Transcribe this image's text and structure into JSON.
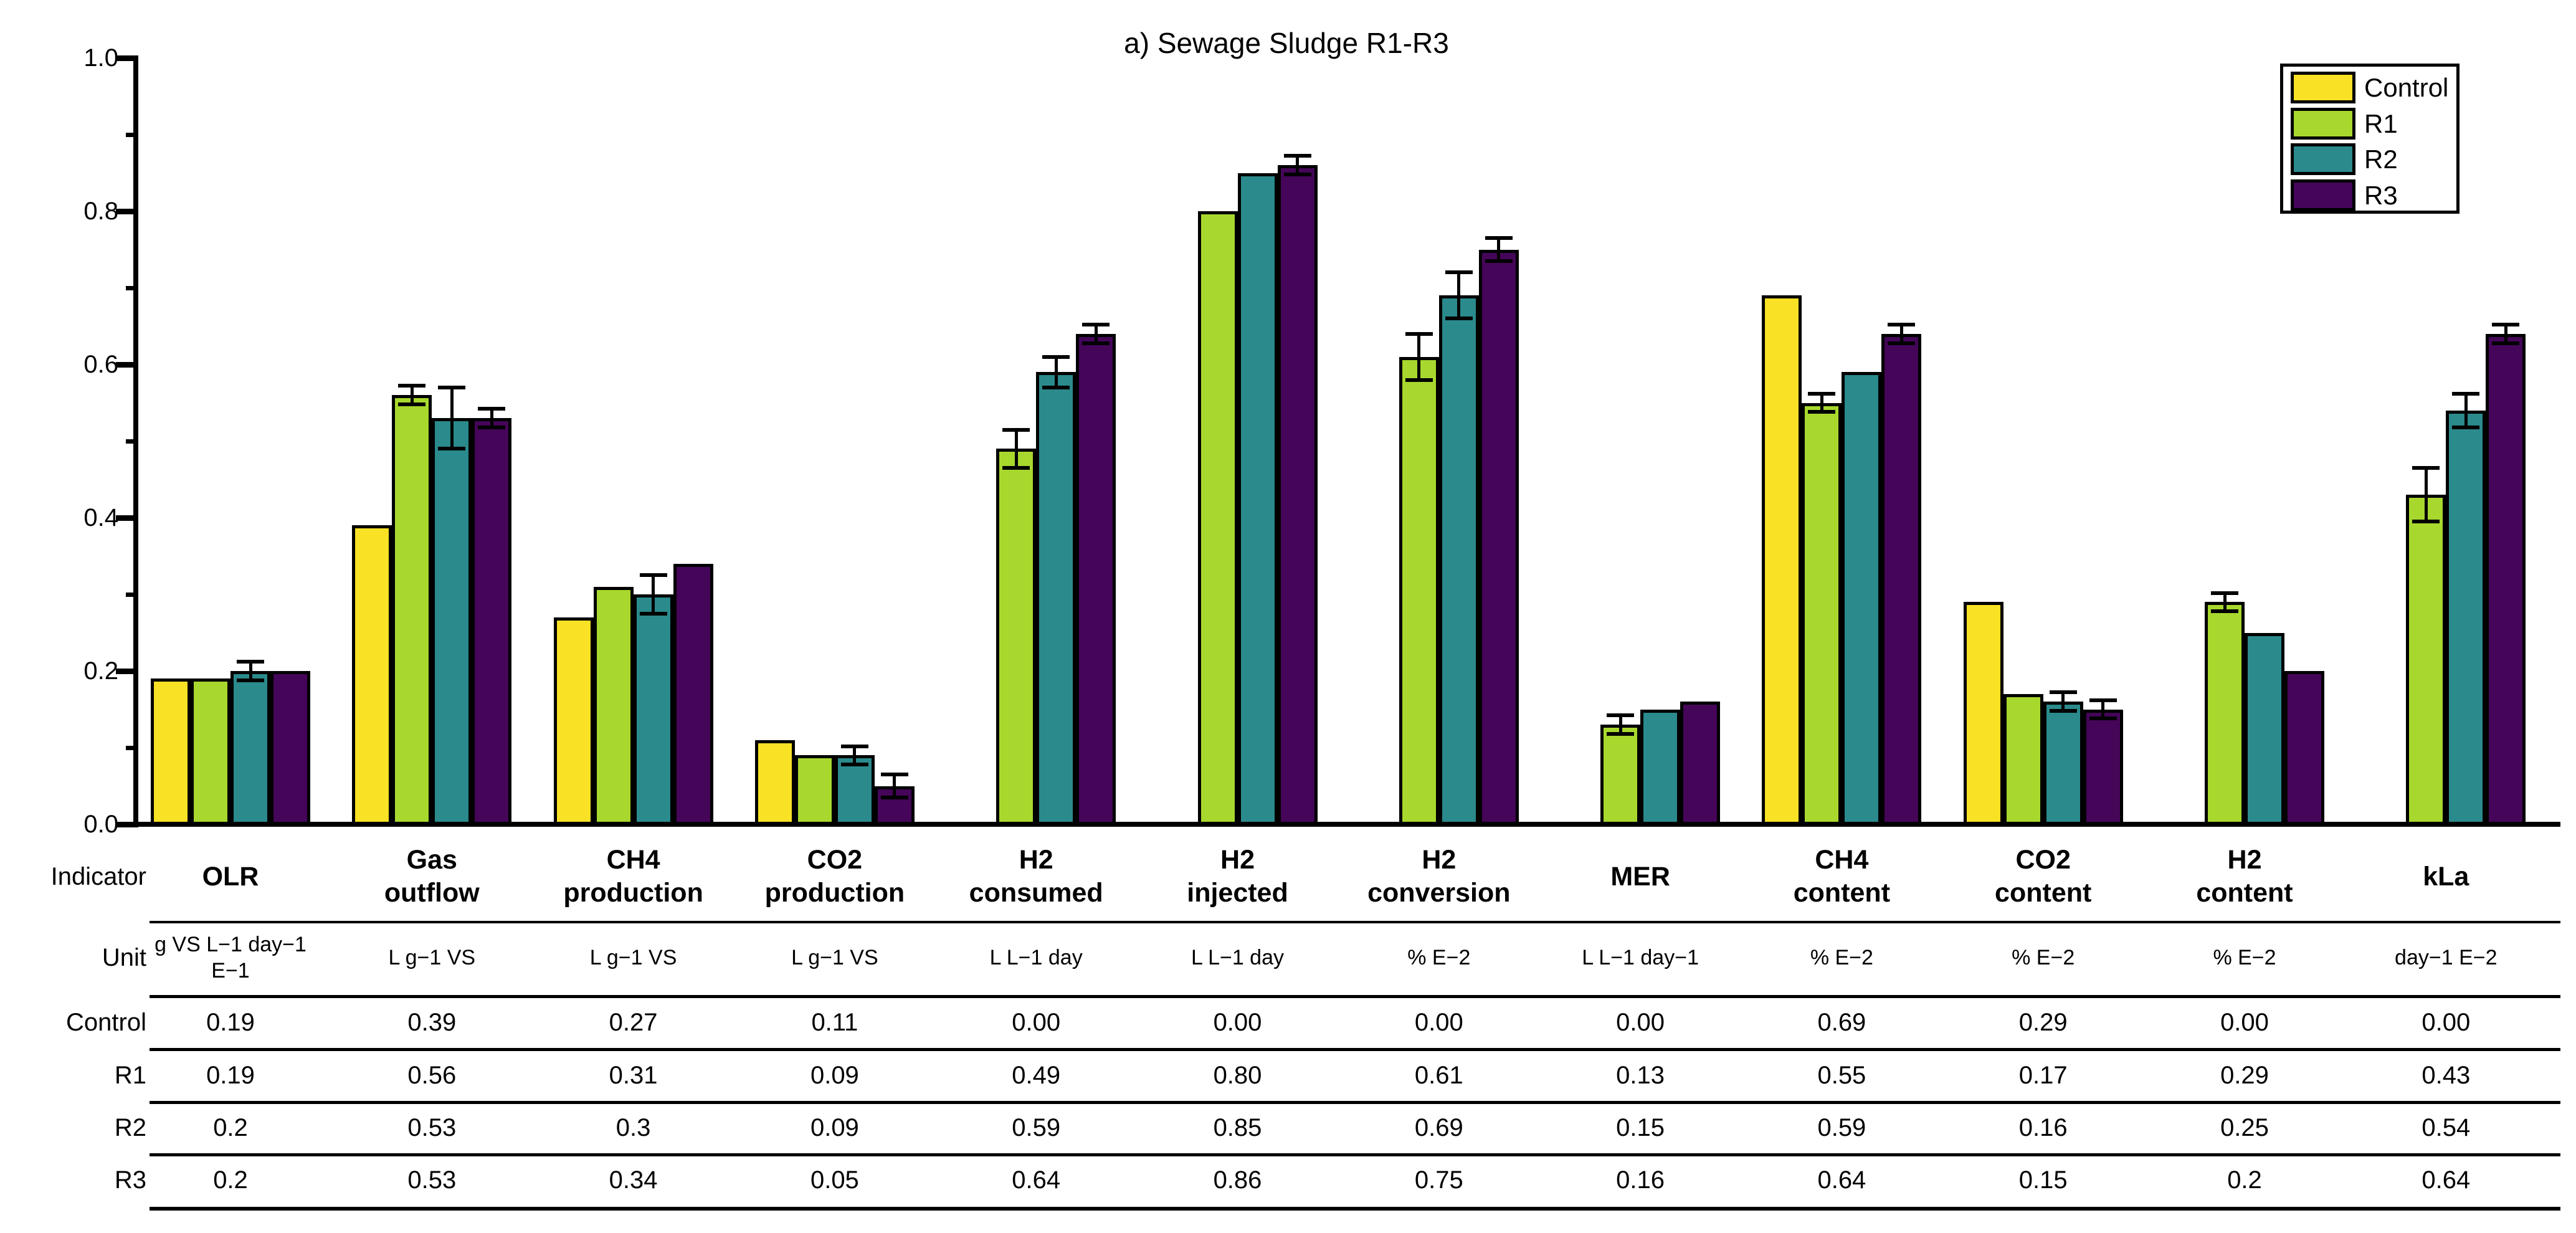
{
  "title": "a) Sewage Sludge R1-R3",
  "axis": {
    "indicator_label": "Indicator",
    "unit_label": "Unit"
  },
  "legend": {
    "position": "top-right",
    "entries": [
      {
        "label": "Control",
        "color": "#F9E125"
      },
      {
        "label": "R1",
        "color": "#A8D82E"
      },
      {
        "label": "R2",
        "color": "#2B8A8C"
      },
      {
        "label": "R3",
        "color": "#450559"
      }
    ]
  },
  "chart_data": {
    "type": "bar",
    "title": "a) Sewage Sludge R1-R3",
    "categories": [
      "OLR",
      "Gas\noutflow",
      "CH4\nproduction",
      "CO2\nproduction",
      "H2\nconsumed",
      "H2\ninjected",
      "H2\nconversion",
      "MER",
      "CH4\ncontent",
      "CO2\ncontent",
      "H2\ncontent",
      "kLa"
    ],
    "units": [
      "g VS L−1 day−1\nE−1",
      "L g−1 VS",
      "L g−1 VS",
      "L g−1 VS",
      "L L−1 day",
      "L L−1 day",
      "% E−2",
      "L L−1 day−1",
      "% E−2",
      "% E−2",
      "% E−2",
      "day−1 E−2"
    ],
    "xlabel": "Indicator",
    "ylabel": "",
    "ylim": [
      0,
      1
    ],
    "yticks": [
      0,
      0.2,
      0.4,
      0.6,
      0.8,
      1
    ],
    "minor_ticks": [
      0.1,
      0.3,
      0.5,
      0.7,
      0.9
    ],
    "grid": false,
    "legend_position": "top-right",
    "series": [
      {
        "name": "Control",
        "color": "#F9E125",
        "values": [
          0.19,
          0.39,
          0.27,
          0.11,
          0,
          0,
          0,
          0,
          0.69,
          0.29,
          0,
          0
        ],
        "errors": [
          0,
          0,
          0,
          0,
          0,
          0,
          0,
          0,
          0,
          0,
          0,
          0
        ]
      },
      {
        "name": "R1",
        "color": "#A8D82E",
        "values": [
          0.19,
          0.56,
          0.31,
          0.09,
          0.49,
          0.8,
          0.61,
          0.13,
          0.55,
          0.17,
          0.29,
          0.43
        ],
        "errors": [
          0,
          0.012,
          0,
          0,
          0.025,
          0,
          0.03,
          0.012,
          0.012,
          0,
          0.012,
          0.035
        ]
      },
      {
        "name": "R2",
        "color": "#2B8A8C",
        "values": [
          0.2,
          0.53,
          0.3,
          0.09,
          0.59,
          0.85,
          0.69,
          0.15,
          0.59,
          0.16,
          0.25,
          0.54
        ],
        "errors": [
          0.012,
          0.04,
          0.025,
          0.012,
          0.02,
          0,
          0.03,
          0,
          0,
          0.012,
          0,
          0.022
        ]
      },
      {
        "name": "R3",
        "color": "#450559",
        "values": [
          0.2,
          0.53,
          0.34,
          0.05,
          0.64,
          0.86,
          0.75,
          0.16,
          0.64,
          0.15,
          0.2,
          0.64
        ],
        "errors": [
          0,
          0.012,
          0,
          0.015,
          0.012,
          0.012,
          0.015,
          0,
          0.012,
          0.012,
          0,
          0.012
        ]
      }
    ]
  },
  "table": {
    "indicator_label": "Indicator",
    "unit_label": "Unit",
    "row_labels": [
      "Control",
      "R1",
      "R2",
      "R3"
    ],
    "rows": [
      [
        "0.19",
        "0.39",
        "0.27",
        "0.11",
        "0.00",
        "0.00",
        "0.00",
        "0.00",
        "0.69",
        "0.29",
        "0.00",
        "0.00"
      ],
      [
        "0.19",
        "0.56",
        "0.31",
        "0.09",
        "0.49",
        "0.80",
        "0.61",
        "0.13",
        "0.55",
        "0.17",
        "0.29",
        "0.43"
      ],
      [
        "0.2",
        "0.53",
        "0.3",
        "0.09",
        "0.59",
        "0.85",
        "0.69",
        "0.15",
        "0.59",
        "0.16",
        "0.25",
        "0.54"
      ],
      [
        "0.2",
        "0.53",
        "0.34",
        "0.05",
        "0.64",
        "0.86",
        "0.75",
        "0.16",
        "0.64",
        "0.15",
        "0.2",
        "0.64"
      ]
    ]
  }
}
